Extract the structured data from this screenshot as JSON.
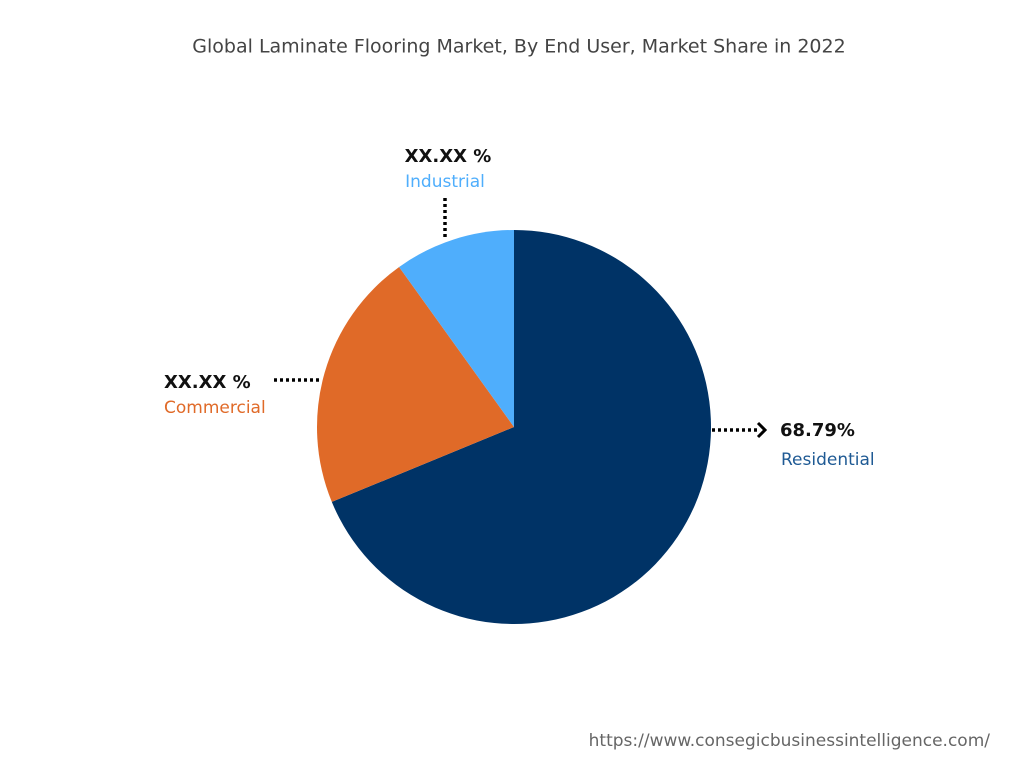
{
  "chart_data": {
    "type": "pie",
    "title": "Global Laminate Flooring Market, By End User, Market Share in 2022",
    "categories": [
      "Residential",
      "Commercial",
      "Industrial"
    ],
    "values": [
      68.79,
      21.3,
      9.91
    ],
    "value_labels": [
      "68.79%",
      "XX.XX %",
      "XX.XX %"
    ],
    "colors": [
      "#003366",
      "#e06a28",
      "#4faefc"
    ],
    "label_colors": [
      "#1f5a94",
      "#e06a28",
      "#4faefc"
    ]
  },
  "source": "https://www.consegicbusinessintelligence.com/"
}
